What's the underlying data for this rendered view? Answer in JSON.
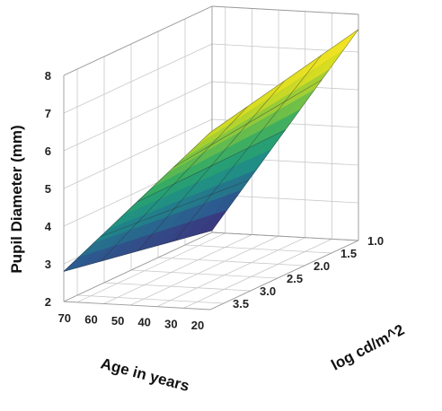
{
  "chart_data": {
    "type": "surface",
    "title": "",
    "xlabel": "Age in years",
    "ylabel": "log cd/m^2",
    "zlabel": "Pupil Diameter (mm)",
    "x_ticks": [
      "20",
      "30",
      "40",
      "50",
      "60",
      "70"
    ],
    "y_ticks": [
      "1.0",
      "1.5",
      "2.0",
      "2.5",
      "3.0",
      "3.5"
    ],
    "z_ticks": [
      "2",
      "3",
      "4",
      "5",
      "6",
      "7",
      "8"
    ],
    "xlim": [
      20,
      75
    ],
    "ylim": [
      1.0,
      3.75
    ],
    "zlim": [
      2,
      8
    ],
    "grid": true,
    "colormap": [
      "#3f2a78",
      "#2c5c8f",
      "#1f8a89",
      "#2aa66b",
      "#7ac443",
      "#d6dc21",
      "#fde725"
    ],
    "x": [
      20,
      75
    ],
    "y": [
      1.0,
      3.75
    ],
    "z": [
      [
        7.6,
        2.05
      ],
      [
        6.7,
        2.8
      ]
    ]
  }
}
